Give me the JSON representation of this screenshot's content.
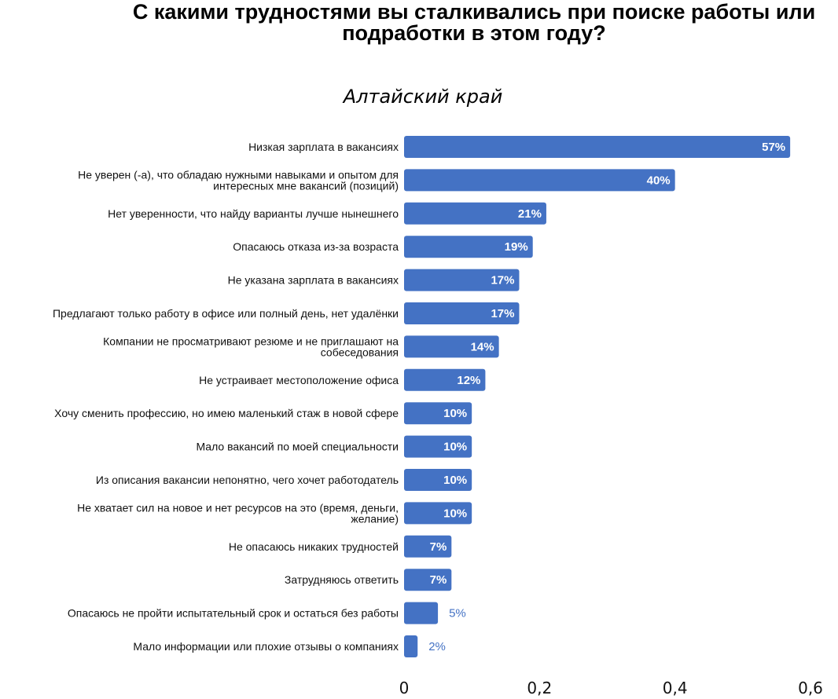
{
  "chart_data": {
    "type": "bar",
    "orientation": "horizontal",
    "title": "С какими трудностями вы сталкивались при поиске работы или подработки в этом году?",
    "subtitle": "Алтайский край",
    "categories": [
      "Низкая зарплата в вакансиях",
      "Не уверен (-а), что обладаю нужными навыками и опытом для интересных мне вакансий (позиций)",
      "Нет уверенности, что найду варианты лучше нынешнего",
      "Опасаюсь отказа из-за возраста",
      "Не указана зарплата в вакансиях",
      "Предлагают только работу в офисе или полный день, нет удалёнки",
      "Компании не просматривают резюме и не приглашают на собеседования",
      "Не устраивает местоположение офиса",
      "Хочу сменить профессию, но имею маленький стаж в новой сфере",
      "Мало вакансий по моей специальности",
      "Из описания вакансии непонятно, чего хочет работодатель",
      "Не хватает сил на новое и нет ресурсов на это (время, деньги, желание)",
      "Не опасаюсь никаких трудностей",
      "Затрудняюсь ответить",
      "Опасаюсь не пройти испытательный срок и остаться без работы",
      "Мало информации или плохие отзывы о компаниях"
    ],
    "category_lines": [
      [
        "Низкая зарплата в вакансиях"
      ],
      [
        "Не уверен (-а), что обладаю нужными навыками и опытом для",
        "интересных мне вакансий (позиций)"
      ],
      [
        "Нет уверенности, что найду варианты лучше нынешнего"
      ],
      [
        "Опасаюсь отказа из-за возраста"
      ],
      [
        "Не указана зарплата в вакансиях"
      ],
      [
        "Предлагают только работу в офисе или полный день, нет удалёнки"
      ],
      [
        "Компании не просматривают резюме и не приглашают на",
        "собеседования"
      ],
      [
        "Не устраивает местоположение офиса"
      ],
      [
        "Хочу сменить профессию, но имею маленький стаж в новой сфере"
      ],
      [
        "Мало вакансий по моей специальности"
      ],
      [
        "Из описания вакансии непонятно, чего хочет работодатель"
      ],
      [
        "Не хватает сил на новое и нет ресурсов на это (время, деньги,",
        "желание)"
      ],
      [
        "Не опасаюсь никаких трудностей"
      ],
      [
        "Затрудняюсь ответить"
      ],
      [
        "Опасаюсь не пройти испытательный срок и остаться без работы"
      ],
      [
        "Мало информации или плохие отзывы о компаниях"
      ]
    ],
    "values": [
      0.57,
      0.4,
      0.21,
      0.19,
      0.17,
      0.17,
      0.14,
      0.12,
      0.1,
      0.1,
      0.1,
      0.1,
      0.07,
      0.07,
      0.05,
      0.02
    ],
    "labels": [
      "57%",
      "40%",
      "21%",
      "19%",
      "17%",
      "17%",
      "14%",
      "12%",
      "10%",
      "10%",
      "10%",
      "10%",
      "7%",
      "7%",
      "5%",
      "2%"
    ],
    "xticks": [
      "0",
      "0,2",
      "0,4",
      "0,6"
    ],
    "xtick_values": [
      0,
      0.2,
      0.4,
      0.6
    ],
    "xlim": [
      0,
      0.6
    ],
    "xlabel": "",
    "ylabel": "",
    "grid": false,
    "legend": "none",
    "bar_color": "#4472c4"
  }
}
